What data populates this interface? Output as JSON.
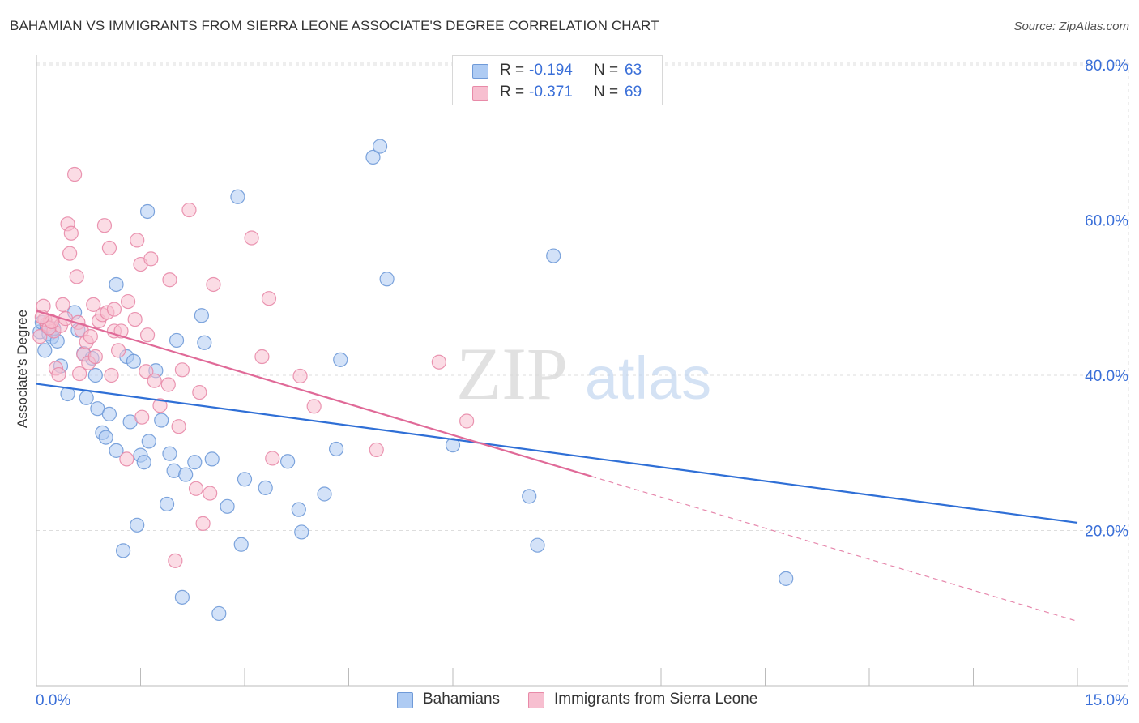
{
  "title": "BAHAMIAN VS IMMIGRANTS FROM SIERRA LEONE ASSOCIATE'S DEGREE CORRELATION CHART",
  "source": "Source: ZipAtlas.com",
  "watermark": {
    "zip": "ZIP",
    "atlas": "atlas"
  },
  "legend": {
    "series1": {
      "r_label": "R = ",
      "r_value": "-0.194",
      "n_label": "N = ",
      "n_value": "63"
    },
    "series2": {
      "r_label": "R = ",
      "r_value": "-0.371",
      "n_label": "N = ",
      "n_value": "69"
    }
  },
  "colors": {
    "bahamians_fill": "#aecbf3",
    "bahamians_stroke": "#6f9ad8",
    "bahamians_line": "#2f6fd6",
    "sierra_fill": "#f7bfd0",
    "sierra_stroke": "#e88aa8",
    "sierra_line": "#e06a98",
    "axis_text": "#3a6fd8",
    "grid": "#dddddd"
  },
  "chart_data": {
    "type": "scatter",
    "title": "BAHAMIAN VS IMMIGRANTS FROM SIERRA LEONE ASSOCIATE'S DEGREE CORRELATION CHART",
    "xlabel": "",
    "ylabel": "Associate's Degree",
    "xlim": [
      0,
      15
    ],
    "ylim": [
      0,
      82
    ],
    "x_tick_labels": [
      "0.0%",
      "15.0%"
    ],
    "y_ticks": [
      20,
      40,
      60,
      80
    ],
    "y_tick_labels": [
      "20.0%",
      "40.0%",
      "60.0%",
      "80.0%"
    ],
    "grid": true,
    "series": [
      {
        "name": "Bahamians",
        "trend": {
          "x0": 0,
          "y0": 38.9,
          "x1": 15,
          "y1": 21.0,
          "solid_until": 15
        },
        "points": [
          [
            0.05,
            45.6
          ],
          [
            0.12,
            43.2
          ],
          [
            0.18,
            45.3
          ],
          [
            0.22,
            44.9
          ],
          [
            0.3,
            44.4
          ],
          [
            0.35,
            41.2
          ],
          [
            0.45,
            37.6
          ],
          [
            0.55,
            48.1
          ],
          [
            0.6,
            45.8
          ],
          [
            0.68,
            42.8
          ],
          [
            0.72,
            37.1
          ],
          [
            0.8,
            42.2
          ],
          [
            0.85,
            40.0
          ],
          [
            0.88,
            35.7
          ],
          [
            0.95,
            32.6
          ],
          [
            1.0,
            32.0
          ],
          [
            1.05,
            35.0
          ],
          [
            1.15,
            30.3
          ],
          [
            1.15,
            51.7
          ],
          [
            1.25,
            17.4
          ],
          [
            1.3,
            42.4
          ],
          [
            1.35,
            34.0
          ],
          [
            1.4,
            41.8
          ],
          [
            1.45,
            20.7
          ],
          [
            1.5,
            29.7
          ],
          [
            1.55,
            28.8
          ],
          [
            1.6,
            61.1
          ],
          [
            1.62,
            31.5
          ],
          [
            1.72,
            40.6
          ],
          [
            1.8,
            34.2
          ],
          [
            1.88,
            23.4
          ],
          [
            1.92,
            29.9
          ],
          [
            1.98,
            27.7
          ],
          [
            2.02,
            44.5
          ],
          [
            2.1,
            11.4
          ],
          [
            2.15,
            27.2
          ],
          [
            2.28,
            28.8
          ],
          [
            2.38,
            47.7
          ],
          [
            2.42,
            44.2
          ],
          [
            2.53,
            29.2
          ],
          [
            2.63,
            9.3
          ],
          [
            2.75,
            23.1
          ],
          [
            2.9,
            63.0
          ],
          [
            2.95,
            18.2
          ],
          [
            3.0,
            26.6
          ],
          [
            3.3,
            25.5
          ],
          [
            3.62,
            28.9
          ],
          [
            3.78,
            22.7
          ],
          [
            3.82,
            19.8
          ],
          [
            4.15,
            24.7
          ],
          [
            4.32,
            30.5
          ],
          [
            4.38,
            42.0
          ],
          [
            4.85,
            68.1
          ],
          [
            4.95,
            69.5
          ],
          [
            5.05,
            52.4
          ],
          [
            6.0,
            31.0
          ],
          [
            7.1,
            24.4
          ],
          [
            7.22,
            18.1
          ],
          [
            7.45,
            55.4
          ],
          [
            10.8,
            13.8
          ],
          [
            0.08,
            46.8
          ],
          [
            0.15,
            46.3
          ],
          [
            0.25,
            46.0
          ]
        ]
      },
      {
        "name": "Immigrants from Sierra Leone",
        "trend": {
          "x0": 0,
          "y0": 48.3,
          "x1": 15,
          "y1": 8.3,
          "solid_until": 8.0
        },
        "points": [
          [
            0.05,
            45.0
          ],
          [
            0.1,
            48.9
          ],
          [
            0.15,
            46.6
          ],
          [
            0.2,
            47.0
          ],
          [
            0.25,
            45.7
          ],
          [
            0.28,
            40.9
          ],
          [
            0.32,
            40.1
          ],
          [
            0.35,
            46.4
          ],
          [
            0.38,
            49.1
          ],
          [
            0.42,
            47.3
          ],
          [
            0.45,
            59.5
          ],
          [
            0.48,
            55.7
          ],
          [
            0.5,
            58.3
          ],
          [
            0.55,
            65.9
          ],
          [
            0.58,
            52.7
          ],
          [
            0.6,
            46.8
          ],
          [
            0.62,
            40.2
          ],
          [
            0.65,
            45.8
          ],
          [
            0.68,
            42.7
          ],
          [
            0.72,
            44.3
          ],
          [
            0.75,
            41.6
          ],
          [
            0.78,
            45.0
          ],
          [
            0.82,
            49.1
          ],
          [
            0.85,
            42.4
          ],
          [
            0.9,
            47.0
          ],
          [
            0.95,
            47.8
          ],
          [
            0.98,
            59.3
          ],
          [
            1.02,
            48.1
          ],
          [
            1.05,
            56.4
          ],
          [
            1.08,
            40.0
          ],
          [
            1.12,
            45.7
          ],
          [
            1.18,
            43.2
          ],
          [
            1.22,
            45.7
          ],
          [
            1.3,
            29.2
          ],
          [
            1.32,
            49.5
          ],
          [
            1.42,
            47.2
          ],
          [
            1.45,
            57.4
          ],
          [
            1.5,
            54.3
          ],
          [
            1.52,
            34.6
          ],
          [
            1.58,
            40.5
          ],
          [
            1.6,
            45.2
          ],
          [
            1.65,
            55.0
          ],
          [
            1.7,
            39.3
          ],
          [
            1.78,
            36.1
          ],
          [
            1.9,
            38.8
          ],
          [
            1.92,
            52.3
          ],
          [
            2.0,
            16.1
          ],
          [
            2.05,
            33.4
          ],
          [
            2.1,
            40.7
          ],
          [
            2.2,
            61.3
          ],
          [
            2.3,
            25.4
          ],
          [
            2.35,
            37.8
          ],
          [
            2.4,
            20.9
          ],
          [
            2.5,
            24.8
          ],
          [
            2.55,
            51.7
          ],
          [
            3.1,
            57.7
          ],
          [
            3.25,
            42.4
          ],
          [
            3.35,
            49.9
          ],
          [
            3.4,
            29.3
          ],
          [
            3.8,
            39.9
          ],
          [
            4.0,
            36.0
          ],
          [
            4.9,
            30.4
          ],
          [
            5.8,
            41.7
          ],
          [
            6.2,
            34.1
          ],
          [
            0.12,
            47.2
          ],
          [
            0.18,
            46.1
          ],
          [
            0.22,
            46.9
          ],
          [
            0.08,
            47.5
          ],
          [
            1.12,
            48.5
          ]
        ]
      }
    ]
  },
  "bottom_legend": {
    "bahamians": "Bahamians",
    "sierra_leone": "Immigrants from Sierra Leone"
  }
}
